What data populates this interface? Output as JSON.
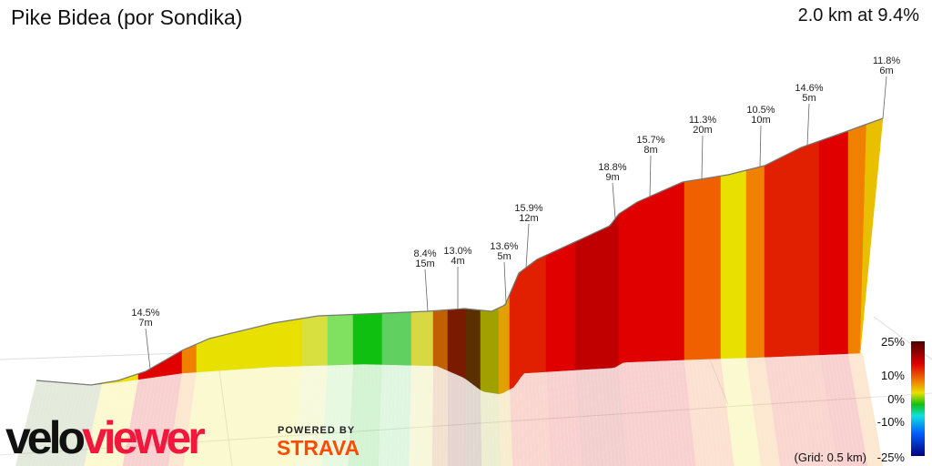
{
  "header": {
    "title": "Pike Bidea (por Sondika)",
    "summary": "2.0 km at 9.4%"
  },
  "annotations": [
    {
      "grade": "14.5%",
      "length": "7m"
    },
    {
      "grade": "8.4%",
      "length": "15m"
    },
    {
      "grade": "13.0%",
      "length": "4m"
    },
    {
      "grade": "13.6%",
      "length": "5m"
    },
    {
      "grade": "15.9%",
      "length": "12m"
    },
    {
      "grade": "18.8%",
      "length": "9m"
    },
    {
      "grade": "15.7%",
      "length": "8m"
    },
    {
      "grade": "11.3%",
      "length": "20m"
    },
    {
      "grade": "10.5%",
      "length": "10m"
    },
    {
      "grade": "14.6%",
      "length": "5m"
    },
    {
      "grade": "11.8%",
      "length": "6m"
    }
  ],
  "legend": {
    "labels": [
      "25%",
      "10%",
      "0%",
      "-10%",
      "-25%"
    ],
    "grid": "(Grid: 0.5 km)",
    "colors": [
      "#4a0000",
      "#e00000",
      "#f08000",
      "#e8e000",
      "#10c010",
      "#10e0e0",
      "#0060ff",
      "#000080"
    ]
  },
  "branding": {
    "logo_left": "velo",
    "logo_right": "viewer",
    "powered": "POWERED BY",
    "strava": "STRAVA"
  }
}
